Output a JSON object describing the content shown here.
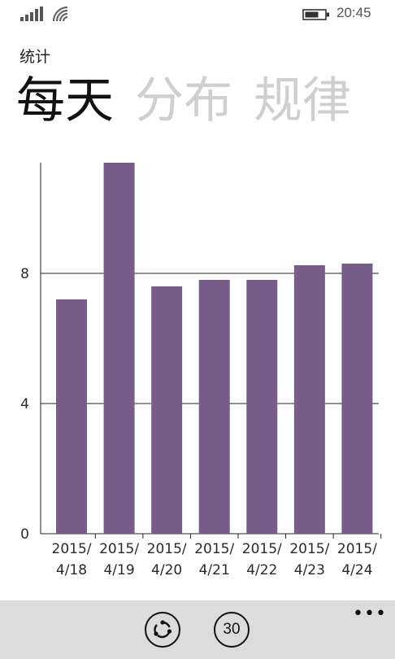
{
  "status_bar": {
    "time": "20:45"
  },
  "app": {
    "title": "统计"
  },
  "pivot": {
    "items": [
      "每天",
      "分布",
      "规律"
    ],
    "active_index": 0
  },
  "chart_data": {
    "type": "bar",
    "categories": [
      [
        "2015/",
        "4/18"
      ],
      [
        "2015/",
        "4/19"
      ],
      [
        "2015/",
        "4/20"
      ],
      [
        "2015/",
        "4/21"
      ],
      [
        "2015/",
        "4/22"
      ],
      [
        "2015/",
        "4/23"
      ],
      [
        "2015/",
        "4/24"
      ]
    ],
    "values": [
      7.2,
      11.4,
      7.6,
      7.8,
      7.8,
      8.25,
      8.3
    ],
    "y_ticks": [
      0,
      4,
      8
    ],
    "ylim": [
      0,
      11.4
    ],
    "grid": true,
    "bar_color": "#765d8a"
  },
  "app_bar": {
    "sync_icon": "sync-icon",
    "days_label": "30",
    "more_label": "•••"
  }
}
